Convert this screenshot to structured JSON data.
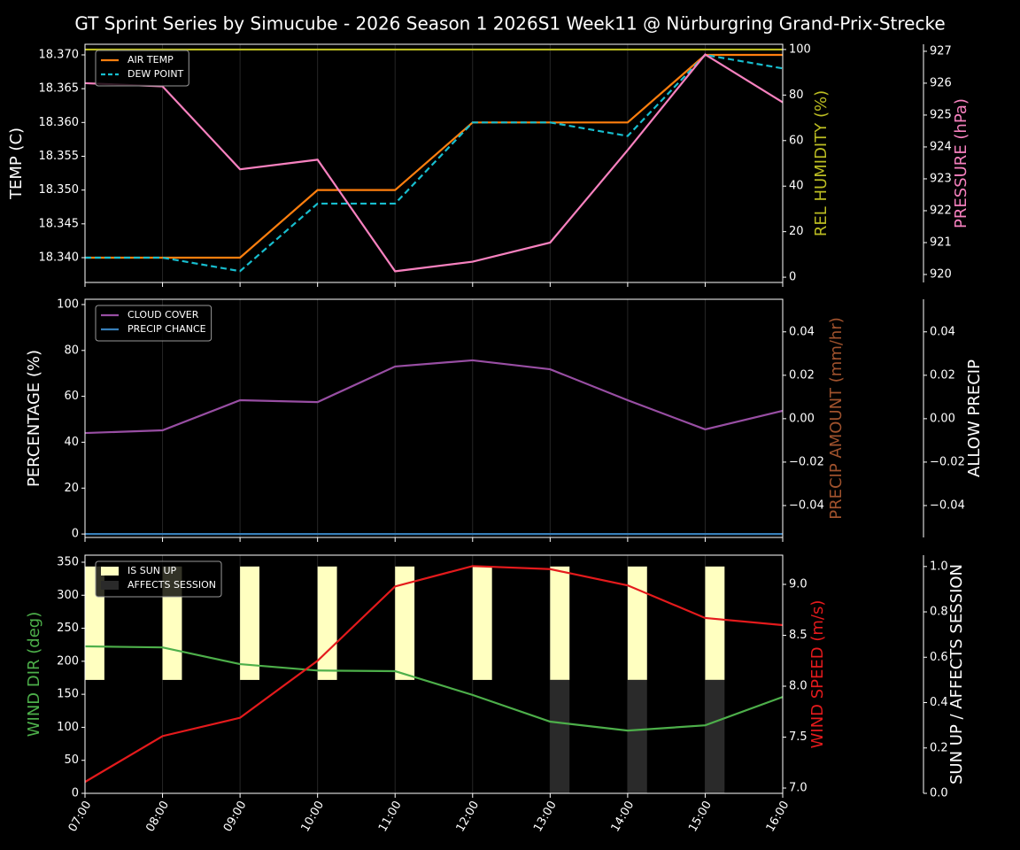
{
  "title": "GT Sprint Series by Simucube - 2026 Season 1 2026S1 Week11 @ Nürburgring Grand-Prix-Strecke",
  "chart_data": [
    {
      "type": "line",
      "legend": "upper left",
      "ylabel": "TEMP (C)",
      "ylabel_color": "#ffffff",
      "ylim": [
        18.33633,
        18.37157
      ],
      "yticks": [
        {
          "value": 18.34,
          "label": "18.340"
        },
        18.345,
        {
          "value": 18.35,
          "label": "18.350"
        },
        18.355,
        {
          "value": 18.36,
          "label": "18.360"
        },
        18.365,
        {
          "value": 18.37,
          "label": "18.370"
        }
      ],
      "y2label": "REL HUMIDITY (%)",
      "y2label_color": "#bcbd22",
      "y2lim": [
        -2.3,
        102.3
      ],
      "y2ticks": [
        0,
        20,
        40,
        60,
        80,
        100
      ],
      "y3label": "PRESSURE (hPa)",
      "y3label_color": "#f781bf",
      "y3lim": [
        919.75,
        927.22
      ],
      "y3ticks": [
        920,
        921,
        922,
        923,
        924,
        925,
        926,
        927
      ],
      "series": [
        {
          "name": "AIR TEMP",
          "color": "#ff7f0e",
          "axis": "y",
          "linestyle": "solid",
          "values": [
            18.34,
            18.34,
            18.34,
            18.35,
            18.35,
            18.36,
            18.36,
            18.36,
            18.37,
            18.37
          ]
        },
        {
          "name": "DEW POINT",
          "color": "#17becf",
          "axis": "y",
          "linestyle": "dashed",
          "values": [
            18.34,
            18.34,
            18.338,
            18.348,
            18.348,
            18.36,
            18.36,
            18.358,
            18.37,
            18.368
          ]
        },
        {
          "color": "#bcbd22",
          "axis": "y2",
          "linestyle": "solid",
          "values": [
            100,
            100,
            100,
            100,
            100,
            100,
            100,
            100,
            100,
            100
          ]
        },
        {
          "color": "#f781bf",
          "axis": "y3",
          "linestyle": "solid",
          "values": [
            926.0,
            925.9,
            923.3,
            923.6,
            920.1,
            920.4,
            921.0,
            923.9,
            926.9,
            925.4
          ]
        }
      ]
    },
    {
      "type": "line",
      "legend": "upper left",
      "ylabel": "PERCENTAGE (%)",
      "ylabel_color": "#ffffff",
      "ylim": [
        -1.5,
        102.3
      ],
      "yticks": [
        0,
        20,
        40,
        60,
        80,
        100
      ],
      "y2label": "PRECIP AMOUNT (mm/hr)",
      "y2label_color": "#a0522d",
      "y2lim": [
        -0.0547,
        0.055
      ],
      "y2ticks": [
        {
          "value": -0.04,
          "label": "−0.04"
        },
        {
          "value": -0.02,
          "label": "−0.02"
        },
        {
          "value": 0,
          "label": "0.00"
        },
        0.02,
        0.04
      ],
      "y3label": "ALLOW PRECIP",
      "y3label_color": "#ffffff",
      "y3lim": [
        -0.0547,
        0.055
      ],
      "y3ticks": [
        {
          "value": -0.04,
          "label": "−0.04"
        },
        {
          "value": -0.02,
          "label": "−0.02"
        },
        {
          "value": 0,
          "label": "0.00"
        },
        0.02,
        0.04
      ],
      "series": [
        {
          "name": "CLOUD COVER",
          "color": "#984ea3",
          "axis": "y",
          "linestyle": "solid",
          "values": [
            44,
            45.2,
            58.3,
            57.5,
            73,
            75.7,
            71.8,
            58.3,
            45.6,
            53.7
          ]
        },
        {
          "name": "PRECIP CHANCE",
          "color": "#377eb8",
          "axis": "y",
          "linestyle": "solid",
          "values": [
            0,
            0,
            0,
            0,
            0,
            0,
            0,
            0,
            0,
            0
          ]
        }
      ]
    },
    {
      "type": "line",
      "legend": "upper left",
      "categories": [
        "07:00",
        "08:00",
        "09:00",
        "10:00",
        "11:00",
        "12:00",
        "13:00",
        "14:00",
        "15:00",
        "16:00"
      ],
      "ylabel": "WIND DIR (deg)",
      "ylabel_color": "#4daf4a",
      "ylim": [
        0,
        360.7
      ],
      "yticks": [
        0,
        50,
        100,
        150,
        200,
        250,
        300,
        350
      ],
      "y2label": "WIND SPEED (m/s)",
      "y2label_color": "#e41a1c",
      "y2lim": [
        6.948,
        9.287
      ],
      "y2ticks": [
        {
          "value": 7,
          "label": "7.0"
        },
        7.5,
        {
          "value": 8,
          "label": "8.0"
        },
        8.5,
        {
          "value": 9,
          "label": "9.0"
        }
      ],
      "y3label": "SUN UP / AFFECTS SESSION",
      "y3label_color": "#ffffff",
      "y3lim": [
        0,
        1.05
      ],
      "y3ticks": [
        {
          "value": 0,
          "label": "0.0"
        },
        0.2,
        0.4,
        0.6,
        0.8,
        {
          "value": 1,
          "label": "1.0"
        }
      ],
      "series": [
        {
          "name": "IS SUN UP",
          "type": "bar",
          "color": "#ffffc0",
          "axis": "y3",
          "values": [
            1,
            1,
            1,
            1,
            1,
            1,
            1,
            1,
            1,
            0
          ]
        },
        {
          "name": "AFFECTS SESSION",
          "type": "bar",
          "color": "#2a2a2a",
          "axis": "y3",
          "values": [
            0,
            0,
            0,
            0,
            0,
            0,
            0.5,
            0.5,
            0.5,
            0
          ]
        },
        {
          "color": "#4daf4a",
          "axis": "y",
          "linestyle": "solid",
          "values": [
            222.6,
            221,
            195.7,
            186,
            185,
            149,
            108.6,
            95,
            103,
            146
          ]
        },
        {
          "color": "#e41a1c",
          "axis": "y2",
          "linestyle": "solid",
          "values": [
            7.06,
            7.51,
            7.69,
            8.25,
            8.98,
            9.18,
            9.15,
            8.99,
            8.67,
            8.6
          ]
        }
      ]
    }
  ]
}
